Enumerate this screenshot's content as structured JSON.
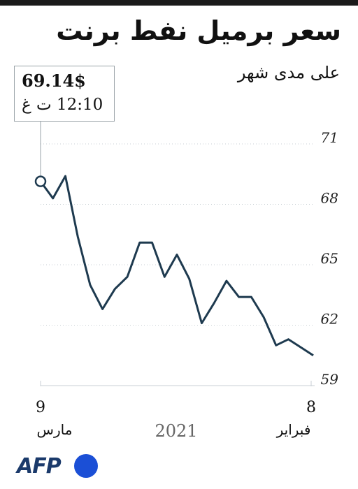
{
  "title": "سعر برميل نفط برنت",
  "subtitle": "على مدى شهر",
  "tooltip": {
    "price": "69.14$",
    "time": "12:10 ت غ"
  },
  "x_axis": {
    "start_day": "9",
    "start_month": "مارس",
    "end_day": "8",
    "end_month": "فبراير",
    "year": "2021"
  },
  "logo": "AFP",
  "colors": {
    "line": "#1e3a4f",
    "grid": "#c8cfd4",
    "logo_dot": "#1b4fd6"
  },
  "chart_data": {
    "type": "line",
    "title": "سعر برميل نفط برنت",
    "subtitle": "على مدى شهر",
    "xlabel": "",
    "ylabel": "",
    "ylim": [
      59,
      71.5
    ],
    "yticks": [
      59,
      62,
      65,
      68,
      71
    ],
    "reversed_x": true,
    "grid": "horizontal",
    "series": [
      {
        "values": [
          69.14,
          68.3,
          69.4,
          66.4,
          64.0,
          62.8,
          63.8,
          64.4,
          66.1,
          66.1,
          64.4,
          65.5,
          64.3,
          62.1,
          63.1,
          64.2,
          63.4,
          63.4,
          62.4,
          61.0,
          61.3,
          60.9,
          60.5
        ]
      }
    ]
  }
}
